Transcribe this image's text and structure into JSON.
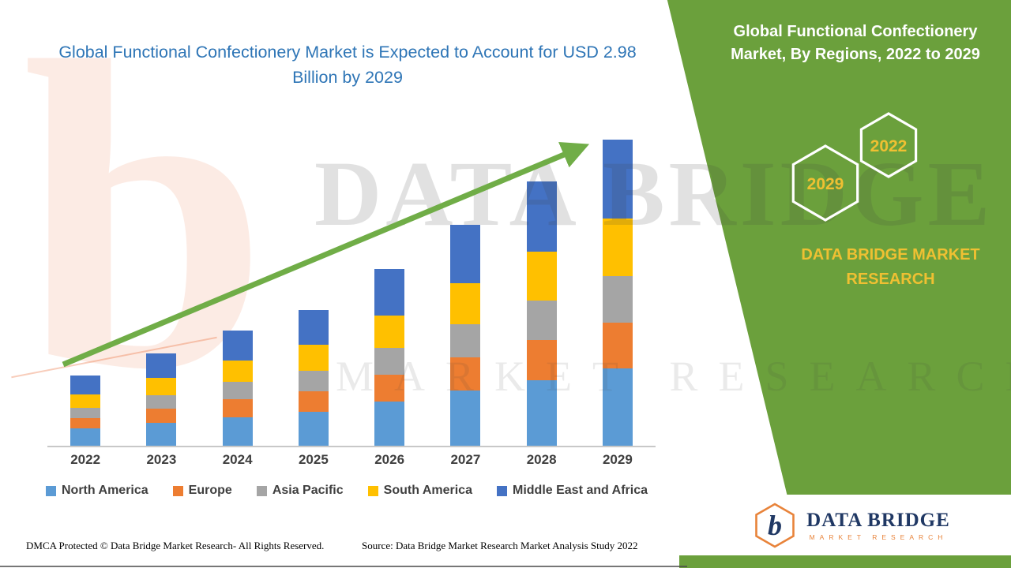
{
  "header": {
    "title": "Global Functional Confectionery Market is Expected to Account for USD 2.98 Billion by 2029"
  },
  "panel": {
    "title": "Global Functional Confectionery Market, By Regions, 2022 to 2029",
    "hexagons": [
      "2029",
      "2022"
    ],
    "brand": "DATA BRIDGE MARKET RESEARCH"
  },
  "chart_data": {
    "type": "bar",
    "stacked": true,
    "title": "Global Functional Confectionery Market is Expected to Account for USD 2.98 Billion by 2029",
    "categories": [
      "2022",
      "2023",
      "2024",
      "2025",
      "2026",
      "2027",
      "2028",
      "2029"
    ],
    "series": [
      {
        "name": "North America",
        "color": "#5B9BD5",
        "values": [
          0.17,
          0.22,
          0.28,
          0.33,
          0.43,
          0.54,
          0.64,
          0.75
        ]
      },
      {
        "name": "Europe",
        "color": "#ED7D31",
        "values": [
          0.1,
          0.14,
          0.17,
          0.2,
          0.26,
          0.32,
          0.39,
          0.45
        ]
      },
      {
        "name": "Asia Pacific",
        "color": "#A5A5A5",
        "values": [
          0.1,
          0.13,
          0.17,
          0.2,
          0.26,
          0.32,
          0.38,
          0.45
        ]
      },
      {
        "name": "South America",
        "color": "#FFC000",
        "values": [
          0.13,
          0.17,
          0.21,
          0.25,
          0.32,
          0.4,
          0.48,
          0.56
        ]
      },
      {
        "name": "Middle East and Africa",
        "color": "#4472C4",
        "values": [
          0.18,
          0.24,
          0.29,
          0.34,
          0.45,
          0.57,
          0.68,
          0.77
        ]
      }
    ],
    "totals": [
      0.68,
      0.9,
      1.12,
      1.32,
      1.72,
      2.15,
      2.57,
      2.98
    ],
    "value_unit": "USD Billion",
    "xlabel": "",
    "ylabel": "",
    "ylim": [
      0,
      3.3
    ],
    "grid": false,
    "legend_position": "bottom",
    "annotations": [
      "upward trend arrow from 2022 to 2029"
    ]
  },
  "footer": {
    "dmca": "DMCA Protected © Data Bridge Market Research- All Rights Reserved.",
    "source": "Source: Data Bridge Market Research Market Analysis Study 2022"
  },
  "logo": {
    "name": "DATA BRIDGE",
    "tagline": "MARKET RESEARCH",
    "mark_letter": "b"
  },
  "watermark": {
    "line1": "DATA BRIDGE",
    "line2": "MARKET RESEARCH",
    "mark": "b"
  },
  "colors": {
    "panel_green": "#6BA03C",
    "arrow_green": "#70AD47",
    "title_blue": "#2E75B6",
    "accent_yellow": "#EFC032",
    "logo_navy": "#203864",
    "logo_orange": "#E8833A",
    "north_america": "#5B9BD5",
    "europe": "#ED7D31",
    "asia_pacific": "#A5A5A5",
    "south_america": "#FFC000",
    "middle_east_africa": "#4472C4"
  }
}
